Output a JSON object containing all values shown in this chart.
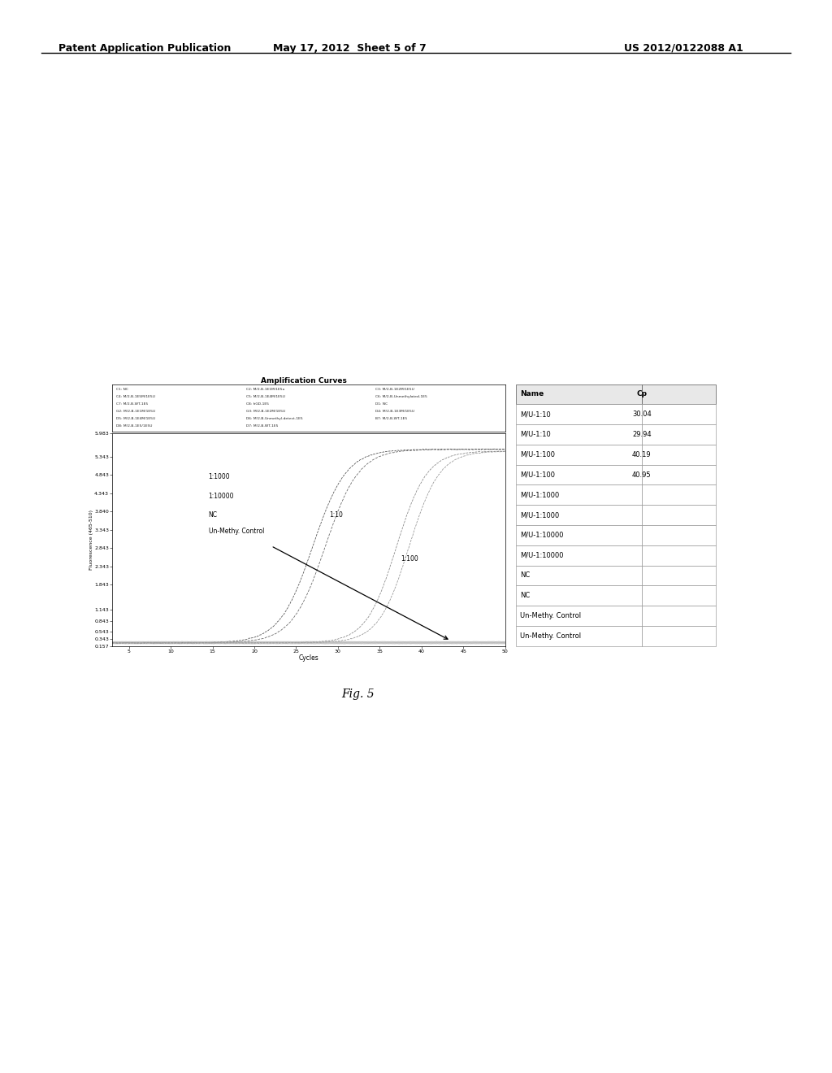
{
  "header_left": "Patent Application Publication",
  "header_mid": "May 17, 2012  Sheet 5 of 7",
  "header_right": "US 2012/0122088 A1",
  "fig_label": "Fig. 5",
  "chart_title": "Amplification Curves",
  "chart_xlabel": "Cycles",
  "chart_ylabel": "Fluorescence (465-510)",
  "chart_xlim": [
    3,
    50
  ],
  "chart_ylim": [
    0.157,
    5.983
  ],
  "chart_yticks": [
    0.157,
    0.343,
    0.543,
    0.843,
    1.143,
    1.843,
    2.343,
    2.843,
    3.343,
    3.84,
    4.343,
    4.843,
    5.343,
    5.983
  ],
  "chart_xticks": [
    5,
    10,
    15,
    20,
    25,
    30,
    35,
    40,
    45,
    50
  ],
  "table_headers": [
    "Name",
    "Cp"
  ],
  "table_rows": [
    [
      "M/U-1:10",
      "30.04"
    ],
    [
      "M/U-1:10",
      "29.94"
    ],
    [
      "M/U-1:100",
      "40.19"
    ],
    [
      "M/U-1:100",
      "40.95"
    ],
    [
      "M/U-1:1000",
      ""
    ],
    [
      "M/U-1:1000",
      ""
    ],
    [
      "M/U-1:10000",
      ""
    ],
    [
      "M/U-1:10000",
      ""
    ],
    [
      "NC",
      ""
    ],
    [
      "NC",
      ""
    ],
    [
      "Un-Methy. Control",
      ""
    ],
    [
      "Un-Methy. Control",
      ""
    ]
  ],
  "background_color": "#ffffff",
  "legend_entries_col1": [
    "C1: NC",
    "C4: M/2-B-1E5M/1E5U",
    "C7: M/2-B-WT-1E5",
    "G2: M/2-B-1E1M/1E5U",
    "D5: M/2-B-1E4M/1E5U",
    "D8: M/2-B-1E5/1E5U"
  ],
  "legend_entries_col2": [
    "C2: M/2-B-1E1M/1E5u",
    "C5: M/2-B-1E4M/1E5U",
    "C8: hGD-1E5",
    "G3: M/2-B-1E2M/1E5U",
    "D6: M/2-B-Unmethyl.detect-1E5",
    "D7: M/2-B-WT-1E5"
  ],
  "legend_entries_col3": [
    "C3: M/2-B-1E2M/1E5U",
    "C6: M/2-B-Unmethylated-1E5",
    "D1: NC",
    "D4: M/2-B-1E3M/1E5U",
    "B7: M/2-B-WT-1E5",
    ""
  ]
}
